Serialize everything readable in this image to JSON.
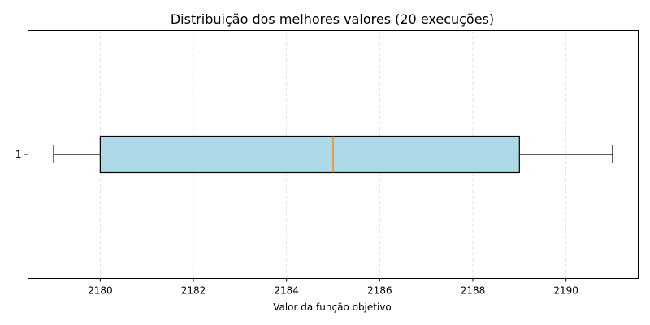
{
  "chart_data": {
    "type": "boxplot",
    "orientation": "horizontal",
    "title": "Distribuição dos melhores valores (20 execuções)",
    "xlabel": "Valor da função objetivo",
    "ylabel": "",
    "xlim": [
      2178.45,
      2191.55
    ],
    "x_ticks": [
      2180,
      2182,
      2184,
      2186,
      2188,
      2190
    ],
    "y_ticks": [
      "1"
    ],
    "grid": {
      "x": true,
      "y": false,
      "style": "dashed"
    },
    "series": [
      {
        "category": "1",
        "whisker_low": 2179,
        "q1": 2180,
        "median": 2185,
        "q3": 2189,
        "whisker_high": 2191
      }
    ],
    "colors": {
      "box_fill": "#add8e6",
      "median": "#ff7f0e",
      "grid": "#dddddd",
      "line": "#000000"
    }
  }
}
